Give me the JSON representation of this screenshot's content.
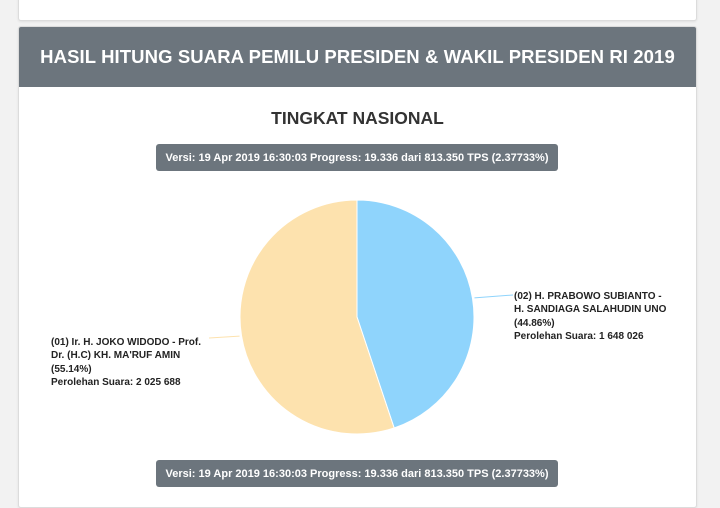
{
  "header": {
    "title": "HASIL HITUNG SUARA PEMILU PRESIDEN & WAKIL PRESIDEN RI 2019"
  },
  "level_title": "TINGKAT NASIONAL",
  "version_text": "Versi: 19 Apr 2019 16:30:03 Progress: 19.336 dari 813.350 TPS (2.37733%)",
  "colors": {
    "header_bg": "#6c757d",
    "slice_02": "#8fd4fc",
    "slice_01": "#fde2ae"
  },
  "chart_data": {
    "type": "pie",
    "title": "",
    "series": [
      {
        "name": "(02) H. PRABOWO SUBIANTO - H. SANDIAGA SALAHUDIN UNO",
        "percent_label": "(44.86%)",
        "votes_label": "Perolehan Suara: 1 648 026",
        "value": 1648026,
        "percent": 44.86,
        "color": "#8fd4fc"
      },
      {
        "name": "(01) Ir. H. JOKO WIDODO - Prof. Dr. (H.C) KH. MA'RUF AMIN",
        "percent_label": "(55.14%)",
        "votes_label": "Perolehan Suara: 2 025 688",
        "value": 2025688,
        "percent": 55.14,
        "color": "#fde2ae"
      }
    ]
  }
}
